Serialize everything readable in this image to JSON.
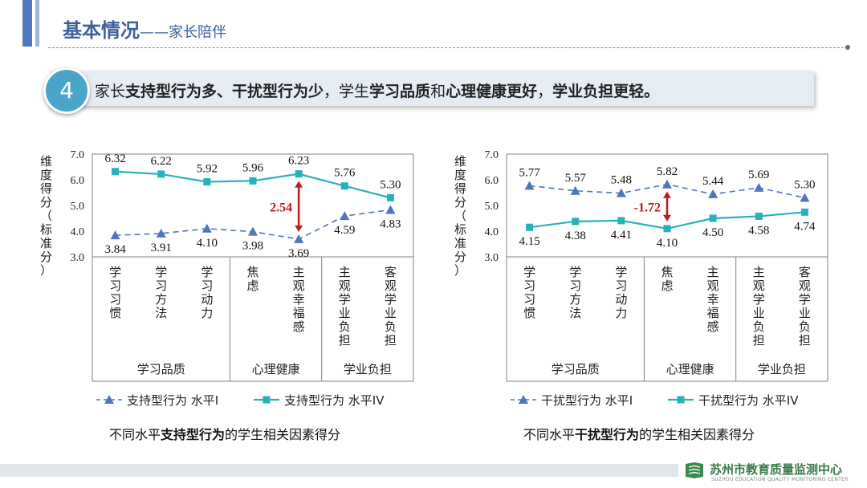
{
  "header": {
    "title": "基本情况",
    "subtitle": "——家长陪伴"
  },
  "banner": {
    "number": "4",
    "parts": [
      {
        "text": "家长",
        "bold": false
      },
      {
        "text": "支持型行为多、干扰型行为少",
        "bold": true
      },
      {
        "text": "，学生",
        "bold": false
      },
      {
        "text": "学习品质",
        "bold": true
      },
      {
        "text": "和",
        "bold": false
      },
      {
        "text": "心理健康更好",
        "bold": true
      },
      {
        "text": "，",
        "bold": false
      },
      {
        "text": "学业负担更轻。",
        "bold": true
      }
    ]
  },
  "colors": {
    "level1": "#4f76b8",
    "level4": "#27b2bb",
    "diff": "#c0191f",
    "axis": "#808080"
  },
  "chart_data": [
    {
      "type": "line",
      "ylabel": "维度得分（标准分）",
      "ylim": [
        3.0,
        7.0
      ],
      "yticks": [
        "3.0",
        "4.0",
        "5.0",
        "6.0",
        "7.0"
      ],
      "categories": [
        "学习习惯",
        "学习方法",
        "学习动力",
        "焦虑",
        "主观幸福感",
        "主观学业负担",
        "客观学业负担"
      ],
      "groups": [
        {
          "label": "学习品质",
          "span": 3
        },
        {
          "label": "心理健康",
          "span": 2
        },
        {
          "label": "学业负担",
          "span": 2
        }
      ],
      "series": [
        {
          "name": "支持型行为 水平I",
          "style": "dashed-triangle",
          "values": [
            3.84,
            3.91,
            4.1,
            3.98,
            3.69,
            4.59,
            4.83
          ],
          "labels": [
            "3.84",
            "3.91",
            "4.10",
            "3.98",
            "3.69",
            "4.59",
            "4.83"
          ]
        },
        {
          "name": "支持型行为 水平IV",
          "style": "solid-square",
          "values": [
            6.32,
            6.22,
            5.92,
            5.96,
            6.23,
            5.76,
            5.3
          ],
          "labels": [
            "6.32",
            "6.22",
            "5.92",
            "5.96",
            "6.23",
            "5.76",
            "5.30"
          ]
        }
      ],
      "annotation": {
        "category_index": 4,
        "text": "2.54"
      },
      "caption_parts": [
        {
          "text": "不同水平",
          "bold": false
        },
        {
          "text": "支持型行为",
          "bold": true
        },
        {
          "text": "的学生相关因素得分",
          "bold": false
        }
      ]
    },
    {
      "type": "line",
      "ylabel": "维度得分（标准分）",
      "ylim": [
        3.0,
        7.0
      ],
      "yticks": [
        "3.0",
        "4.0",
        "5.0",
        "6.0",
        "7.0"
      ],
      "categories": [
        "学习习惯",
        "学习方法",
        "学习动力",
        "焦虑",
        "主观幸福感",
        "主观学业负担",
        "客观学业负担"
      ],
      "groups": [
        {
          "label": "学习品质",
          "span": 3
        },
        {
          "label": "心理健康",
          "span": 2
        },
        {
          "label": "学业负担",
          "span": 2
        }
      ],
      "series": [
        {
          "name": "干扰型行为 水平I",
          "style": "dashed-triangle",
          "values": [
            5.77,
            5.57,
            5.48,
            5.82,
            5.44,
            5.69,
            5.3
          ],
          "labels": [
            "5.77",
            "5.57",
            "5.48",
            "5.82",
            "5.44",
            "5.69",
            "5.30"
          ]
        },
        {
          "name": "干扰型行为 水平IV",
          "style": "solid-square",
          "values": [
            4.15,
            4.38,
            4.41,
            4.1,
            4.5,
            4.58,
            4.74
          ],
          "labels": [
            "4.15",
            "4.38",
            "4.41",
            "4.10",
            "4.50",
            "4.58",
            "4.74"
          ]
        }
      ],
      "annotation": {
        "category_index": 3,
        "text": "-1.72"
      },
      "caption_parts": [
        {
          "text": "不同水平",
          "bold": false
        },
        {
          "text": "干扰型行为",
          "bold": true
        },
        {
          "text": "的学生相关因素得分",
          "bold": false
        }
      ]
    }
  ],
  "footer": {
    "org": "苏州市教育质量监测中心",
    "org_en": "SUZHOU EDUCATION QUALITY MONITORING CENTER"
  }
}
